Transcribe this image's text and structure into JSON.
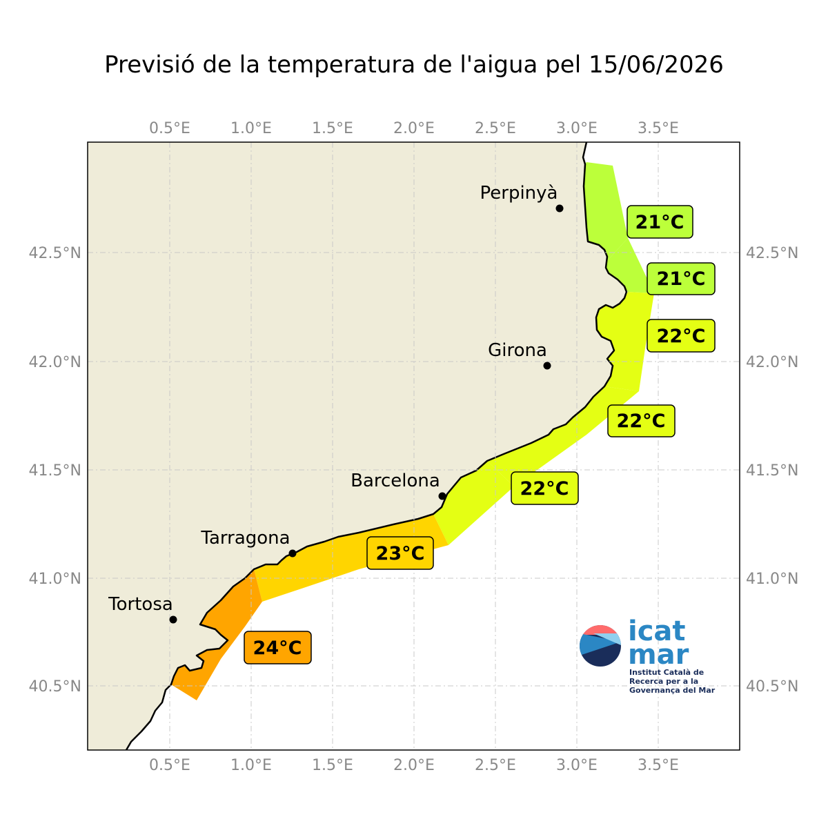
{
  "title": "Previsió de la temperatura de l'aigua pel 15/06/2026",
  "axes": {
    "top_lon_ticks": [
      "0.5°E",
      "1.0°E",
      "1.5°E",
      "2.0°E",
      "2.5°E",
      "3.0°E",
      "3.5°E"
    ],
    "bottom_lon_ticks": [
      "0.5°E",
      "1.0°E",
      "1.5°E",
      "2.0°E",
      "2.5°E",
      "3.0°E",
      "3.5°E"
    ],
    "left_lat_ticks": [
      "42.5°N",
      "42.0°N",
      "41.5°N",
      "41.0°N",
      "40.5°N"
    ],
    "right_lat_ticks": [
      "42.5°N",
      "42.0°N",
      "41.5°N",
      "41.0°N",
      "40.5°N"
    ]
  },
  "cities": {
    "perpinya": "Perpinyà",
    "girona": "Girona",
    "barcelona": "Barcelona",
    "tarragona": "Tarragona",
    "tortosa": "Tortosa"
  },
  "temperatures": {
    "zone1": "21°C",
    "zone2": "21°C",
    "zone3": "22°C",
    "zone4": "22°C",
    "zone5": "22°C",
    "zone6": "23°C",
    "zone7": "24°C"
  },
  "colors": {
    "land": "#efecd9",
    "t21": "#bcff3a",
    "t22": "#e4ff14",
    "t23": "#ffd500",
    "t24": "#ffa500"
  },
  "logo": {
    "line1": "icat",
    "line2": "mar",
    "sub1": "Institut Català de",
    "sub2": "Recerca per a la",
    "sub3": "Governança del Mar"
  }
}
